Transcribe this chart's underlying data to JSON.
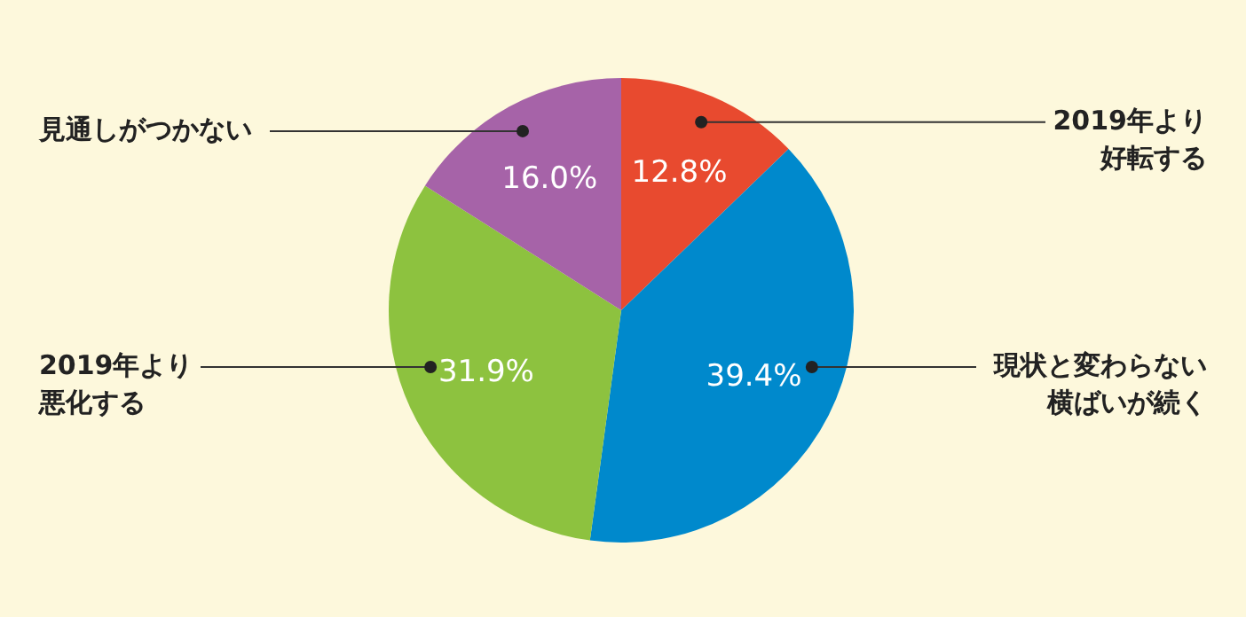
{
  "chart_data": {
    "type": "pie",
    "categories": [
      "2019年より好転する",
      "現状と変わらない横ばいが続く",
      "2019年より悪化する",
      "見通しがつかない"
    ],
    "values": [
      12.8,
      39.4,
      31.9,
      16.0
    ],
    "value_labels": [
      "12.8%",
      "39.4%",
      "31.9%",
      "16.0%"
    ],
    "colors": [
      "#e84a2f",
      "#0089cc",
      "#8dc23f",
      "#a663a8"
    ],
    "legend": false
  }
}
